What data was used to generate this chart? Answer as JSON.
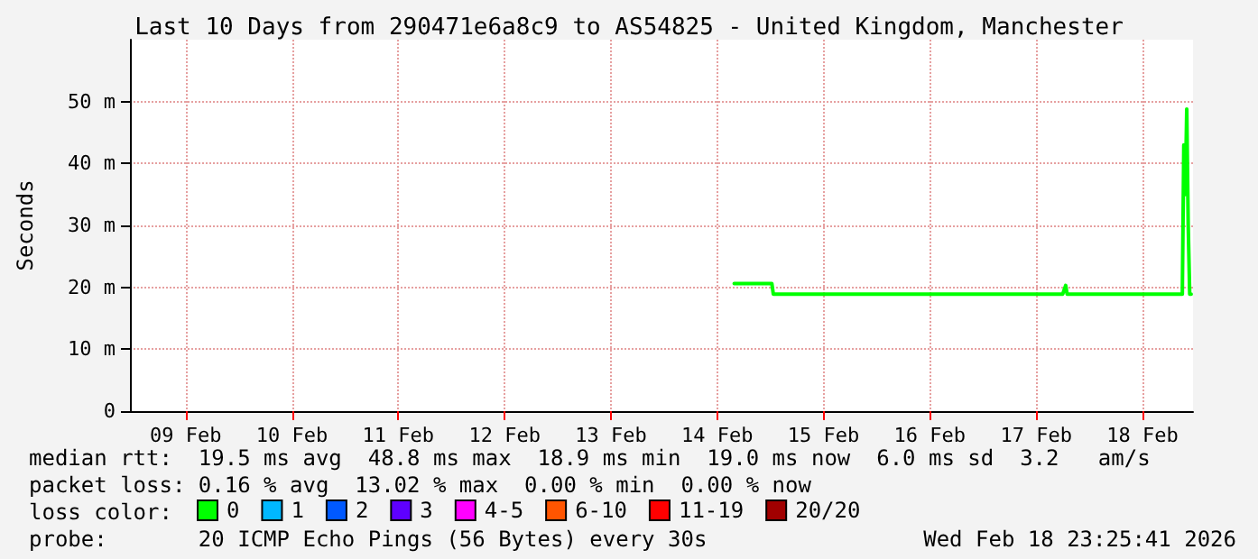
{
  "chart_data": {
    "type": "line",
    "title": "Last 10 Days from 290471e6a8c9 to AS54825 - United Kingdom, Manchester",
    "ylabel": "Seconds",
    "xlim": [
      "2026-02-08T23:25",
      "2026-02-18T23:25"
    ],
    "xticks": [
      {
        "value": "2026-02-09T12:00",
        "label": "09 Feb"
      },
      {
        "value": "2026-02-10T12:00",
        "label": "10 Feb"
      },
      {
        "value": "2026-02-11T12:00",
        "label": "11 Feb"
      },
      {
        "value": "2026-02-12T12:00",
        "label": "12 Feb"
      },
      {
        "value": "2026-02-13T12:00",
        "label": "13 Feb"
      },
      {
        "value": "2026-02-14T12:00",
        "label": "14 Feb"
      },
      {
        "value": "2026-02-15T12:00",
        "label": "15 Feb"
      },
      {
        "value": "2026-02-16T12:00",
        "label": "16 Feb"
      },
      {
        "value": "2026-02-17T12:00",
        "label": "17 Feb"
      },
      {
        "value": "2026-02-18T12:00",
        "label": "18 Feb"
      }
    ],
    "ylim": [
      0,
      60
    ],
    "yticks": [
      {
        "value": 0,
        "label": "0"
      },
      {
        "value": 10,
        "label": "10 m"
      },
      {
        "value": 20,
        "label": "20 m"
      },
      {
        "value": 30,
        "label": "30 m"
      },
      {
        "value": 40,
        "label": "40 m"
      },
      {
        "value": 50,
        "label": "50 m"
      }
    ],
    "grid": true,
    "legend": "bottom",
    "legend_title": "loss color:",
    "marker": "none",
    "line_style": "solid",
    "series": [
      {
        "name": "0",
        "color": "#00ff00",
        "x": [
          "2026-02-14T15:50",
          "2026-02-15T00:20",
          "2026-02-15T00:40",
          "2026-02-17T18:00",
          "2026-02-17T18:40",
          "2026-02-17T19:00",
          "2026-02-18T21:00",
          "2026-02-18T21:20",
          "2026-02-18T21:40",
          "2026-02-18T22:00",
          "2026-02-18T22:20",
          "2026-02-18T22:40",
          "2026-02-18T23:00"
        ],
        "values": [
          20.6,
          20.6,
          18.9,
          18.9,
          20.3,
          18.9,
          18.9,
          43,
          35,
          48.8,
          30,
          18.9,
          18.9
        ]
      },
      {
        "name": "1",
        "color": "#00b8ff"
      },
      {
        "name": "2",
        "color": "#0059ff"
      },
      {
        "name": "3",
        "color": "#5e00ff"
      },
      {
        "name": "4-5",
        "color": "#ff00ff"
      },
      {
        "name": "6-10",
        "color": "#ff5500"
      },
      {
        "name": "11-19",
        "color": "#ff0000"
      },
      {
        "name": "20/20",
        "color": "#a10000"
      }
    ],
    "annotations": [
      "median rtt:  19.5 ms avg  48.8 ms max  18.9 ms min  19.0 ms now  6.0 ms sd  3.2   am/s",
      "packet loss: 0.16 % avg  13.02 % max  0.00 % min  0.00 % now",
      "probe:       20 ICMP Echo Pings (56 Bytes) every 30s",
      "Wed Feb 18 23:25:41 2026"
    ]
  }
}
